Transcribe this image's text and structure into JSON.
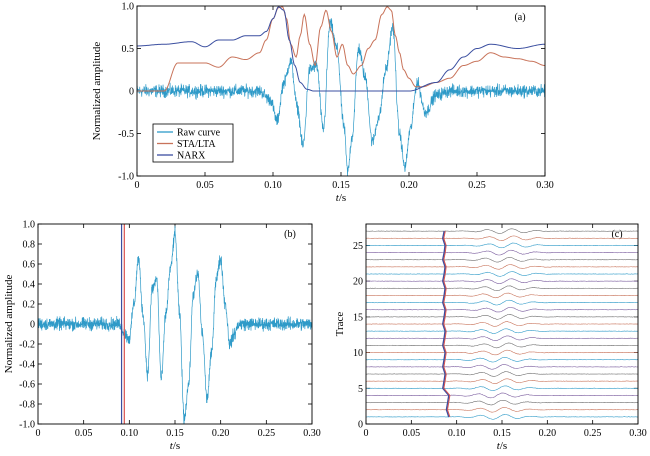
{
  "chart_data": [
    {
      "type": "line",
      "panel": "(a)",
      "xlabel_italic": "t",
      "xlabel_unit": "/s",
      "ylabel": "Normalized amplitude",
      "xlim": [
        0,
        0.3
      ],
      "ylim": [
        -1.0,
        1.0
      ],
      "xticks": [
        "0",
        "0.05",
        "0.10",
        "0.15",
        "0.20",
        "0.25",
        "0.30"
      ],
      "yticks": [
        "-1.0",
        "-0.5",
        "0",
        "0.5",
        "1.0"
      ],
      "legend_position": "bottom-left",
      "series": [
        {
          "name": "Raw curve",
          "color": "#2e9ac8",
          "noise_amplitude": 0.08,
          "x": [
            0,
            0.02,
            0.05,
            0.09,
            0.098,
            0.103,
            0.108,
            0.113,
            0.118,
            0.122,
            0.127,
            0.132,
            0.137,
            0.142,
            0.147,
            0.152,
            0.155,
            0.158,
            0.163,
            0.168,
            0.173,
            0.178,
            0.183,
            0.188,
            0.193,
            0.197,
            0.201,
            0.206,
            0.212,
            0.22,
            0.23,
            0.3
          ],
          "y": [
            0,
            0,
            0,
            0,
            -0.1,
            -0.35,
            0.1,
            0.35,
            -0.2,
            -0.65,
            0.25,
            0.3,
            -0.45,
            0.8,
            0.5,
            -0.4,
            -0.95,
            -0.55,
            0.5,
            0.15,
            -0.6,
            -0.3,
            0.25,
            0.75,
            -0.5,
            -0.9,
            -0.45,
            0.1,
            -0.25,
            -0.05,
            0,
            0
          ]
        },
        {
          "name": "STA/LTA",
          "color": "#c8735a",
          "x": [
            0,
            0.02,
            0.03,
            0.05,
            0.06,
            0.07,
            0.08,
            0.09,
            0.095,
            0.1,
            0.104,
            0.107,
            0.11,
            0.113,
            0.117,
            0.12,
            0.123,
            0.127,
            0.131,
            0.135,
            0.139,
            0.143,
            0.147,
            0.151,
            0.155,
            0.159,
            0.165,
            0.17,
            0.175,
            0.18,
            0.184,
            0.187,
            0.19,
            0.193,
            0.196,
            0.2,
            0.205,
            0.21,
            0.22,
            0.23,
            0.24,
            0.25,
            0.26,
            0.27,
            0.28,
            0.29,
            0.3
          ],
          "y": [
            0,
            0,
            0.33,
            0.33,
            0.28,
            0.4,
            0.37,
            0.45,
            0.6,
            0.85,
            0.98,
            0.99,
            0.85,
            0.55,
            0.4,
            0.65,
            0.9,
            0.55,
            0.3,
            0.75,
            0.95,
            0.7,
            0.4,
            0.55,
            0.3,
            0.2,
            0.3,
            0.5,
            0.6,
            0.9,
            0.99,
            0.95,
            0.65,
            0.45,
            0.25,
            0.15,
            0.05,
            0.05,
            0.1,
            0.15,
            0.3,
            0.35,
            0.45,
            0.4,
            0.38,
            0.35,
            0.3
          ]
        },
        {
          "name": "NARX",
          "color": "#3b4fa0",
          "x": [
            0,
            0.02,
            0.04,
            0.05,
            0.06,
            0.07,
            0.08,
            0.09,
            0.095,
            0.1,
            0.104,
            0.108,
            0.112,
            0.116,
            0.12,
            0.125,
            0.13,
            0.14,
            0.2,
            0.22,
            0.23,
            0.24,
            0.25,
            0.26,
            0.28,
            0.3
          ],
          "y": [
            0.53,
            0.55,
            0.58,
            0.52,
            0.6,
            0.6,
            0.65,
            0.65,
            0.7,
            0.85,
            0.99,
            0.95,
            0.6,
            0.3,
            0.1,
            0.02,
            0,
            0,
            0,
            0.1,
            0.25,
            0.4,
            0.5,
            0.55,
            0.5,
            0.55
          ]
        }
      ]
    },
    {
      "type": "line",
      "panel": "(b)",
      "xlabel_italic": "t",
      "xlabel_unit": "/s",
      "ylabel": "Normalized amplitude",
      "xlim": [
        0,
        0.3
      ],
      "ylim": [
        -1.0,
        1.0
      ],
      "xticks": [
        "0",
        "0.05",
        "0.10",
        "0.15",
        "0.20",
        "0.25",
        "0.30"
      ],
      "yticks": [
        "-1.0",
        "-0.8",
        "-0.6",
        "-0.4",
        "-0.2",
        "0",
        "0.2",
        "0.4",
        "0.6",
        "0.8",
        "1.0"
      ],
      "pick_lines": [
        {
          "x": 0.0915,
          "color": "#3b4fa0"
        },
        {
          "x": 0.0945,
          "color": "#d9534f"
        }
      ],
      "series": [
        {
          "color": "#2e9ac8",
          "noise_amplitude": 0.07,
          "x": [
            0,
            0.09,
            0.095,
            0.1,
            0.105,
            0.11,
            0.115,
            0.12,
            0.125,
            0.13,
            0.135,
            0.14,
            0.145,
            0.15,
            0.155,
            0.16,
            0.165,
            0.17,
            0.175,
            0.18,
            0.185,
            0.19,
            0.195,
            0.2,
            0.205,
            0.21,
            0.215,
            0.22,
            0.23,
            0.3
          ],
          "y": [
            0,
            0,
            -0.1,
            -0.15,
            0.2,
            0.65,
            0.1,
            -0.5,
            0.35,
            0.45,
            -0.55,
            0.1,
            0.55,
            0.9,
            0.1,
            -0.95,
            -0.6,
            0.3,
            0.5,
            -0.1,
            -0.75,
            -0.3,
            0.45,
            0.65,
            0.2,
            -0.2,
            -0.1,
            0,
            0,
            0
          ]
        }
      ]
    },
    {
      "type": "line",
      "panel": "(c)",
      "xlabel_italic": "t",
      "xlabel_unit": "/s",
      "ylabel": "Trace",
      "xlim": [
        0,
        0.3
      ],
      "ylim": [
        0,
        28
      ],
      "xticks": [
        "0",
        "0.05",
        "0.10",
        "0.15",
        "0.20",
        "0.25",
        "0.30"
      ],
      "yticks": [
        "0",
        "5",
        "10",
        "15",
        "20",
        "25"
      ],
      "trace_count": 27,
      "trace_colors": [
        "#7a5c9e",
        "#2e9ac8",
        "#c8735a",
        "#6f6f6f"
      ],
      "pick_colors": [
        "#3b4fa0",
        "#d9534f"
      ],
      "first_break_seconds": 0.086,
      "wavelet_center_seconds": 0.15
    }
  ]
}
